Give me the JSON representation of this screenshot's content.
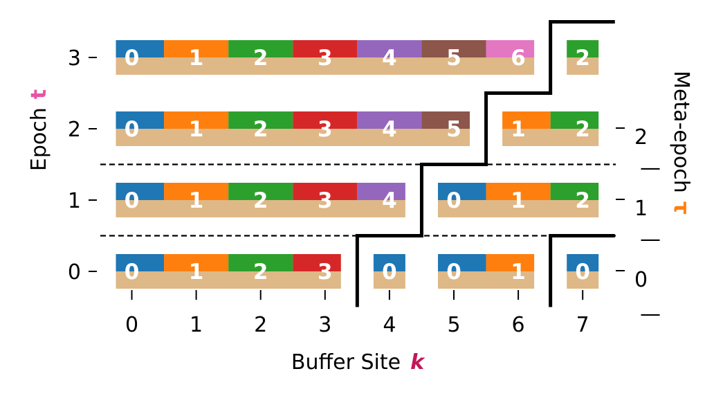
{
  "chart_data": {
    "type": "heatmap",
    "title": "",
    "xlabel": "Buffer Site",
    "xlabel_symbol": "k",
    "ylabel": "Epoch",
    "ylabel_symbol": "t",
    "y2label": "Meta-epoch",
    "y2label_symbol": "τ",
    "x_ticks": [
      0,
      1,
      2,
      3,
      4,
      5,
      6,
      7
    ],
    "y_ticks": [
      0,
      1,
      2,
      3
    ],
    "y2_ticks": [
      0,
      1,
      2
    ],
    "y2_tick_marks": [
      "—",
      "—",
      "—"
    ],
    "xlim": [
      -0.5,
      7.5
    ],
    "ylim": [
      -0.5,
      3.5
    ],
    "meta_epoch_boundaries_epoch": [
      0.5,
      1.5
    ],
    "colors": {
      "palette": [
        "#1f77b4",
        "#ff7f0e",
        "#2ca02c",
        "#d62728",
        "#9467bd",
        "#8c564b",
        "#e377c2"
      ],
      "base": "#deb887",
      "xlabel_symbol": "#c2185b",
      "ylabel_symbol": "#e754a5",
      "y2label_symbol": "#ff7f0e",
      "boundary": "#000000"
    },
    "rows": [
      {
        "epoch": 0,
        "segments": [
          {
            "start": 0,
            "labels": [
              "0",
              "1",
              "2",
              "3"
            ]
          },
          {
            "start": 4,
            "labels": [
              "0"
            ]
          },
          {
            "start": 5,
            "labels": [
              "0",
              "1"
            ]
          },
          {
            "start": 7,
            "labels": [
              "0"
            ]
          }
        ]
      },
      {
        "epoch": 1,
        "segments": [
          {
            "start": 0,
            "labels": [
              "0",
              "1",
              "2",
              "3",
              "4"
            ]
          },
          {
            "start": 5,
            "labels": [
              "0",
              "1",
              "2"
            ]
          }
        ]
      },
      {
        "epoch": 2,
        "segments": [
          {
            "start": 0,
            "labels": [
              "0",
              "1",
              "2",
              "3",
              "4",
              "5"
            ]
          },
          {
            "start": 6,
            "labels": [
              "1",
              "2"
            ]
          }
        ]
      },
      {
        "epoch": 3,
        "segments": [
          {
            "start": 0,
            "labels": [
              "0",
              "1",
              "2",
              "3",
              "4",
              "5",
              "6"
            ]
          },
          {
            "start": 7,
            "labels": [
              "2"
            ]
          }
        ]
      }
    ],
    "boundary_paths": [
      [
        [
          3.5,
          -0.5
        ],
        [
          3.5,
          0.5
        ],
        [
          4.5,
          0.5
        ],
        [
          4.5,
          1.5
        ],
        [
          5.5,
          1.5
        ],
        [
          5.5,
          2.5
        ],
        [
          6.5,
          2.5
        ],
        [
          6.5,
          3.5
        ],
        [
          7.5,
          3.5
        ]
      ],
      [
        [
          6.5,
          -0.5
        ],
        [
          6.5,
          0.5
        ],
        [
          7.5,
          0.5
        ]
      ]
    ]
  }
}
